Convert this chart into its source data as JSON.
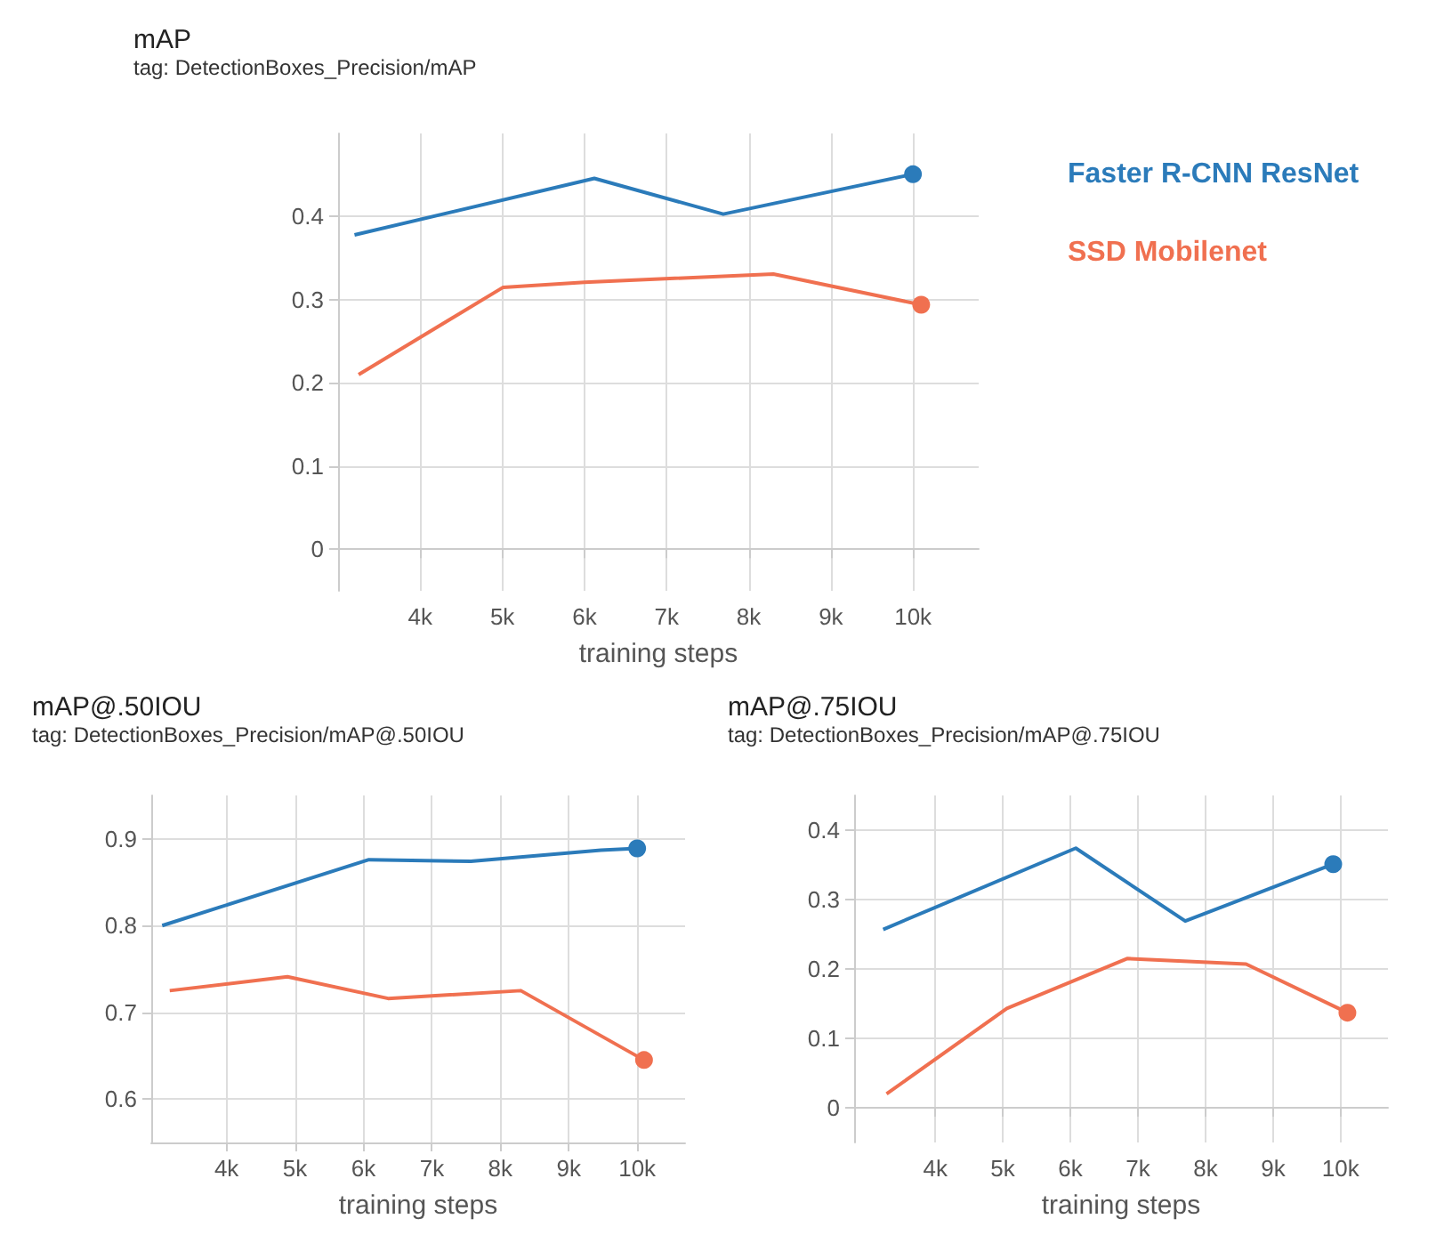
{
  "chart_data": [
    {
      "type": "line",
      "title": "mAP",
      "subtitle": "tag: DetectionBoxes_Precision/mAP",
      "xlabel": "training steps",
      "xlim": [
        3000,
        10800
      ],
      "xticks": [
        {
          "value": 4000,
          "label": "4k"
        },
        {
          "value": 5000,
          "label": "5k"
        },
        {
          "value": 6000,
          "label": "6k"
        },
        {
          "value": 7000,
          "label": "7k"
        },
        {
          "value": 8000,
          "label": "8k"
        },
        {
          "value": 9000,
          "label": "9k"
        },
        {
          "value": 10000,
          "label": "10k"
        }
      ],
      "ylim": [
        -0.05,
        0.5
      ],
      "yticks": [
        0,
        0.1,
        0.2,
        0.3,
        0.4
      ],
      "grid": true,
      "legend": "right",
      "marker": "none",
      "line_style": "solid",
      "series": [
        {
          "name": "Faster R-CNN ResNet",
          "color": "#2b7bba",
          "x": [
            3200,
            6120,
            7690,
            10000
          ],
          "values": [
            0.378,
            0.446,
            0.403,
            0.451
          ]
        },
        {
          "name": "SSD Mobilenet",
          "color": "#f07050",
          "x": [
            3250,
            5010,
            6000,
            8300,
            10100
          ],
          "values": [
            0.21,
            0.315,
            0.321,
            0.331,
            0.294
          ]
        }
      ]
    },
    {
      "type": "line",
      "title": "mAP@.50IOU",
      "subtitle": "tag: DetectionBoxes_Precision/mAP@.50IOU",
      "xlabel": "training steps",
      "xlim": [
        2900,
        10700
      ],
      "xticks": [
        {
          "value": 4000,
          "label": "4k"
        },
        {
          "value": 5000,
          "label": "5k"
        },
        {
          "value": 6000,
          "label": "6k"
        },
        {
          "value": 7000,
          "label": "7k"
        },
        {
          "value": 8000,
          "label": "8k"
        },
        {
          "value": 9000,
          "label": "9k"
        },
        {
          "value": 10000,
          "label": "10k"
        }
      ],
      "ylim": [
        0.55,
        0.95
      ],
      "yticks": [
        0.6,
        0.7,
        0.8,
        0.9
      ],
      "grid": true,
      "marker": "none",
      "line_style": "solid",
      "series": [
        {
          "color": "#2b7bba",
          "x": [
            3060,
            6080,
            7570,
            9470,
            10000
          ],
          "values": [
            0.8,
            0.876,
            0.874,
            0.887,
            0.889
          ]
        },
        {
          "color": "#f07050",
          "x": [
            3170,
            4890,
            6360,
            8300,
            10100
          ],
          "values": [
            0.725,
            0.741,
            0.716,
            0.725,
            0.645
          ]
        }
      ]
    },
    {
      "type": "line",
      "title": "mAP@.75IOU",
      "subtitle": "tag: DetectionBoxes_Precision/mAP@.75IOU",
      "xlabel": "training steps",
      "xlim": [
        2800,
        10700
      ],
      "xticks": [
        {
          "value": 4000,
          "label": "4k"
        },
        {
          "value": 5000,
          "label": "5k"
        },
        {
          "value": 6000,
          "label": "6k"
        },
        {
          "value": 7000,
          "label": "7k"
        },
        {
          "value": 8000,
          "label": "8k"
        },
        {
          "value": 9000,
          "label": "9k"
        },
        {
          "value": 10000,
          "label": "10k"
        }
      ],
      "ylim": [
        -0.05,
        0.45
      ],
      "yticks": [
        0,
        0.1,
        0.2,
        0.3,
        0.4
      ],
      "grid": true,
      "marker": "none",
      "line_style": "solid",
      "series": [
        {
          "color": "#2b7bba",
          "x": [
            3230,
            6080,
            7700,
            9890
          ],
          "values": [
            0.257,
            0.374,
            0.269,
            0.351
          ]
        },
        {
          "color": "#f07050",
          "x": [
            3280,
            5060,
            6840,
            8600,
            10100
          ],
          "values": [
            0.02,
            0.143,
            0.215,
            0.207,
            0.137
          ]
        }
      ]
    }
  ]
}
